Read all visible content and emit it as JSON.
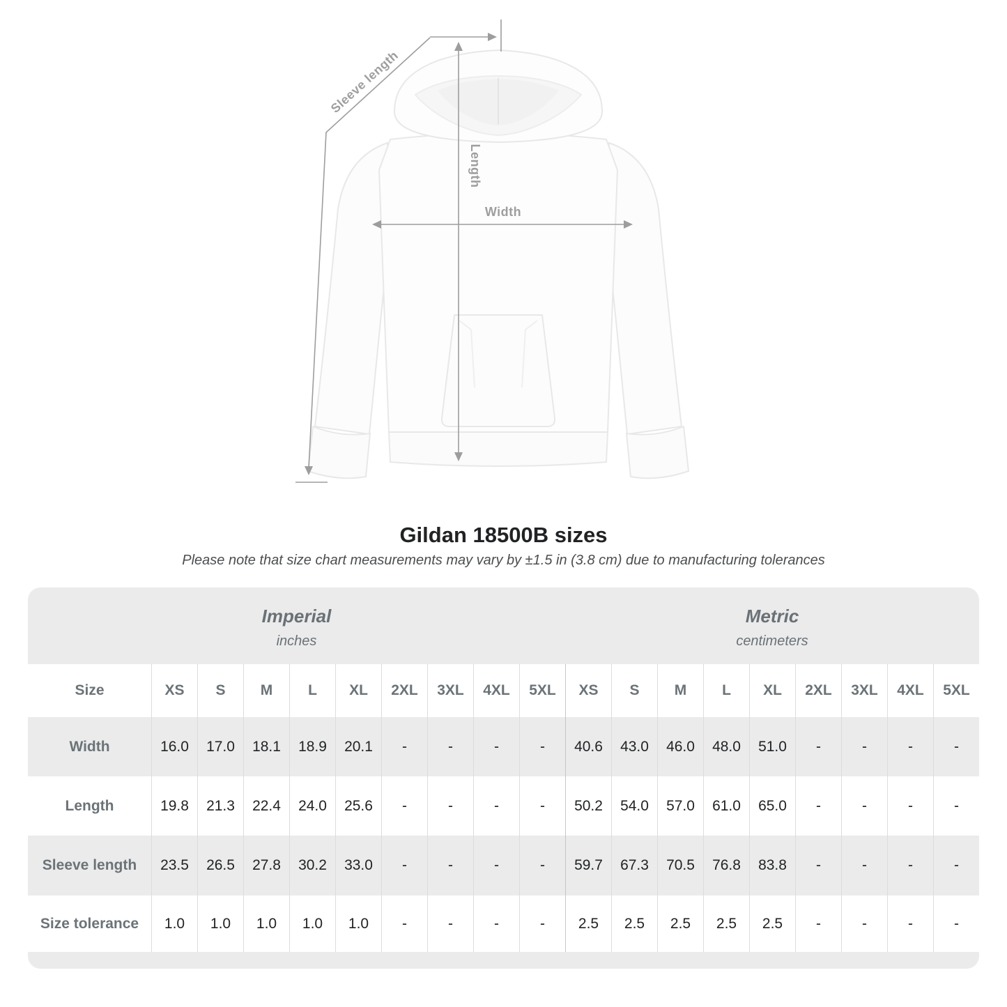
{
  "diagram": {
    "labels": {
      "sleeve_length": "Sleeve length",
      "length": "Length",
      "width": "Width"
    }
  },
  "title": "Gildan 18500B sizes",
  "subtitle": "Please note that size chart measurements may vary by ±1.5 in (3.8 cm) due to manufacturing tolerances",
  "table": {
    "sections": [
      {
        "label": "Imperial",
        "unit": "inches"
      },
      {
        "label": "Metric",
        "unit": "centimeters"
      }
    ],
    "size_header": "Size",
    "sizes": [
      "XS",
      "S",
      "M",
      "L",
      "XL",
      "2XL",
      "3XL",
      "4XL",
      "5XL"
    ],
    "rows": [
      {
        "label": "Width",
        "imperial": [
          "16.0",
          "17.0",
          "18.1",
          "18.9",
          "20.1",
          "-",
          "-",
          "-",
          "-"
        ],
        "metric": [
          "40.6",
          "43.0",
          "46.0",
          "48.0",
          "51.0",
          "-",
          "-",
          "-",
          "-"
        ]
      },
      {
        "label": "Length",
        "imperial": [
          "19.8",
          "21.3",
          "22.4",
          "24.0",
          "25.6",
          "-",
          "-",
          "-",
          "-"
        ],
        "metric": [
          "50.2",
          "54.0",
          "57.0",
          "61.0",
          "65.0",
          "-",
          "-",
          "-",
          "-"
        ]
      },
      {
        "label": "Sleeve length",
        "imperial": [
          "23.5",
          "26.5",
          "27.8",
          "30.2",
          "33.0",
          "-",
          "-",
          "-",
          "-"
        ],
        "metric": [
          "59.7",
          "67.3",
          "70.5",
          "76.8",
          "83.8",
          "-",
          "-",
          "-",
          "-"
        ]
      },
      {
        "label": "Size tolerance",
        "imperial": [
          "1.0",
          "1.0",
          "1.0",
          "1.0",
          "1.0",
          "-",
          "-",
          "-",
          "-"
        ],
        "metric": [
          "2.5",
          "2.5",
          "2.5",
          "2.5",
          "2.5",
          "-",
          "-",
          "-",
          "-"
        ]
      }
    ]
  },
  "colors": {
    "row_stripe": "#ebebeb",
    "divider": "#dcdcdc",
    "section_divider": "#c6c6c6",
    "label_text": "#6b7377",
    "value_text": "#212325",
    "annotation": "#9e9e9e"
  }
}
